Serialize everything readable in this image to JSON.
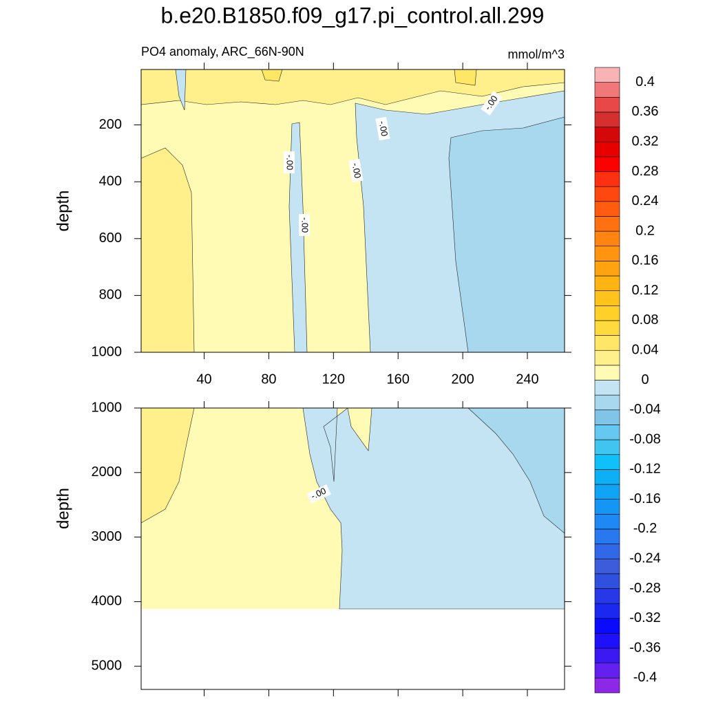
{
  "chart_data": {
    "type": "contour",
    "title": "b.e20.B1850.f09_g17.pi_control.all.299",
    "subtitle": "PO4 anomaly, ARC_66N-90N",
    "units": "mmol/m^3",
    "panels": [
      {
        "ylabel": "depth",
        "xlim": [
          1,
          263
        ],
        "ylim": [
          5,
          1000
        ],
        "y_reversed": true,
        "xticks": [
          40,
          80,
          120,
          160,
          200,
          240
        ],
        "xtick_labels": true,
        "yticks": [
          200,
          400,
          600,
          800,
          1000
        ],
        "contour_labels": [
          "-.00",
          "-.00",
          "-.00",
          "-.00",
          "-.00"
        ]
      },
      {
        "ylabel": "depth",
        "xlim": [
          1,
          263
        ],
        "ylim": [
          1000,
          5360
        ],
        "y_reversed": true,
        "xticks": [
          40,
          80,
          120,
          160,
          200,
          240
        ],
        "xtick_labels": false,
        "yticks": [
          1000,
          2000,
          3000,
          4000,
          5000
        ],
        "contour_labels": [
          "-.00"
        ]
      }
    ],
    "colorbar": {
      "levels": [
        -0.42,
        -0.4,
        -0.38,
        -0.36,
        -0.34,
        -0.32,
        -0.3,
        -0.28,
        -0.26,
        -0.24,
        -0.22,
        -0.2,
        -0.18,
        -0.16,
        -0.14,
        -0.12,
        -0.1,
        -0.08,
        -0.06,
        -0.04,
        -0.02,
        0,
        0.02,
        0.04,
        0.06,
        0.08,
        0.1,
        0.12,
        0.14,
        0.16,
        0.18,
        0.2,
        0.22,
        0.24,
        0.26,
        0.28,
        0.3,
        0.32,
        0.34,
        0.36,
        0.38,
        0.4,
        0.42
      ],
      "colors": [
        "#8c28e6",
        "#6420ee",
        "#3c18f2",
        "#1e10f8",
        "#0a0aff",
        "#1a28f0",
        "#2838e8",
        "#3050e0",
        "#3c5cdc",
        "#3068e8",
        "#2878f0",
        "#1e88f4",
        "#1496f4",
        "#10a4f4",
        "#0cb0f4",
        "#10c0f8",
        "#40c4f0",
        "#64c8f0",
        "#80c4e8",
        "#a8d8ee",
        "#c4e4f4",
        "#fffab4",
        "#fff08c",
        "#ffe664",
        "#ffda3c",
        "#ffd028",
        "#ffc41c",
        "#ffb414",
        "#ffa410",
        "#ff9410",
        "#ff8410",
        "#ff7010",
        "#ff5c10",
        "#ff4810",
        "#ff3010",
        "#ff0000",
        "#e80000",
        "#d40808",
        "#d43030",
        "#e84848",
        "#f07878",
        "#f8b4b4"
      ],
      "ticks": [
        -0.4,
        -0.36,
        -0.32,
        -0.28,
        -0.24,
        -0.2,
        -0.16,
        -0.12,
        -0.08,
        -0.04,
        0,
        0.04,
        0.08,
        0.12,
        0.16,
        0.2,
        0.24,
        0.28,
        0.32,
        0.36,
        0.4
      ]
    }
  }
}
